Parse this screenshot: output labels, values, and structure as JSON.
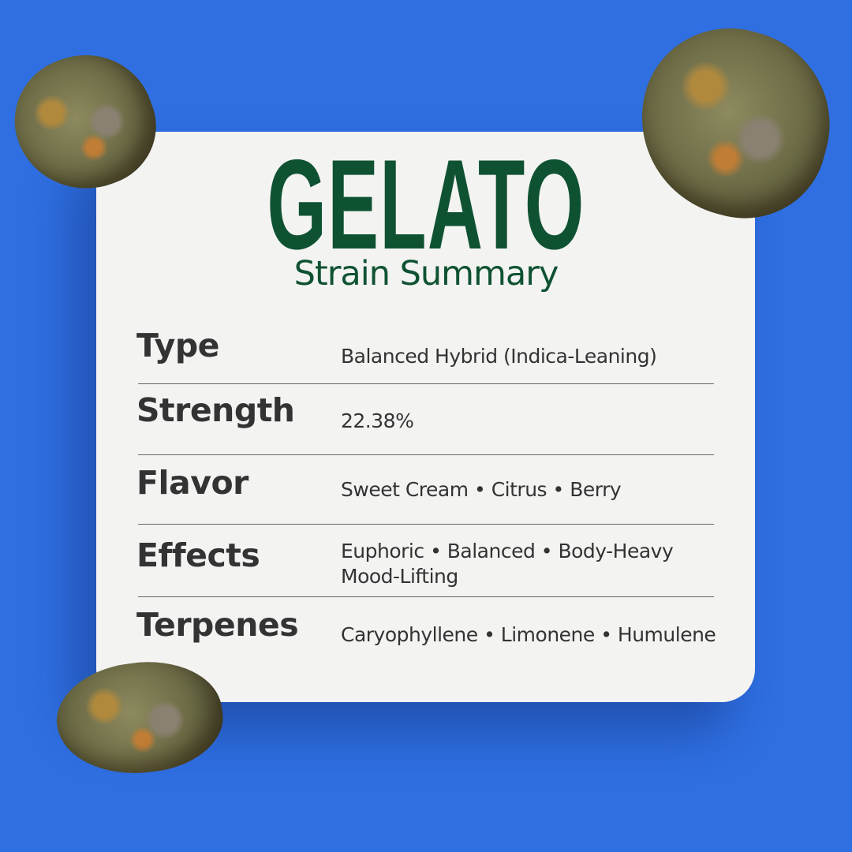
{
  "title": "GELATO",
  "subtitle": "Strain Summary",
  "colors": {
    "background": "#2f6fe2",
    "card": "#f3f3f2",
    "title": "#0f5232",
    "text": "#333333"
  },
  "rows": [
    {
      "label": "Type",
      "value": "Balanced Hybrid (Indica-Leaning)"
    },
    {
      "label": "Strength",
      "value": "22.38%"
    },
    {
      "label": "Flavor",
      "value": "Sweet Cream • Citrus • Berry"
    },
    {
      "label": "Effects",
      "value": "Euphoric • Balanced • Body-Heavy",
      "value2": "Mood-Lifting"
    },
    {
      "label": "Terpenes",
      "value": "Caryophyllene • Limonene • Humulene"
    }
  ]
}
